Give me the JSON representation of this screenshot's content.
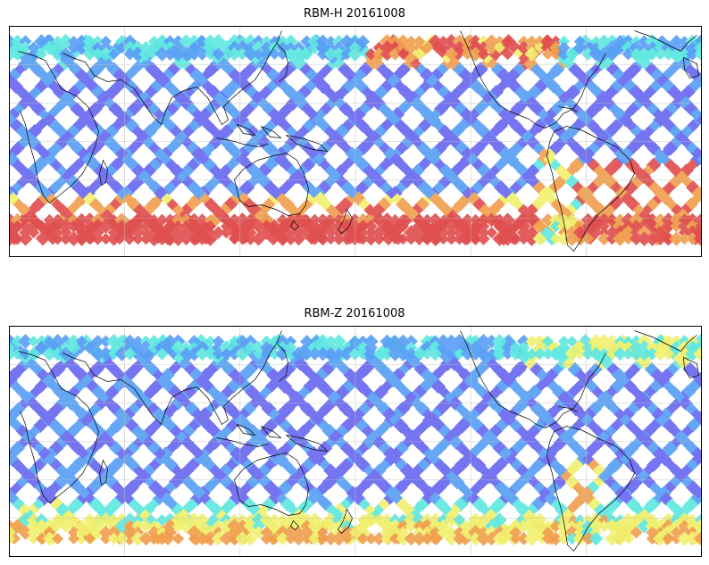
{
  "panels": [
    {
      "title": "RBM-H 20161008",
      "lon_range": [
        40,
        400
      ],
      "lat_range": [
        -90,
        90
      ],
      "colormap": "jet",
      "hot_regions": [
        "southern-high-latitudes",
        "north-pacific-arctic-edge",
        "south-atlantic"
      ]
    },
    {
      "title": "RBM-Z 20161008",
      "lon_range": [
        40,
        400
      ],
      "lat_range": [
        -90,
        90
      ],
      "colormap": "jet",
      "hot_regions": [
        "southern-high-latitudes-weak",
        "south-america-east"
      ]
    }
  ],
  "colors": {
    "low": "#6a6af0",
    "mid_low": "#5aa0f5",
    "mid": "#60e8e0",
    "mid_high": "#f0f070",
    "high": "#f0a050",
    "max": "#e05050",
    "coast": "#000000",
    "grid": "#bbbbbb"
  }
}
